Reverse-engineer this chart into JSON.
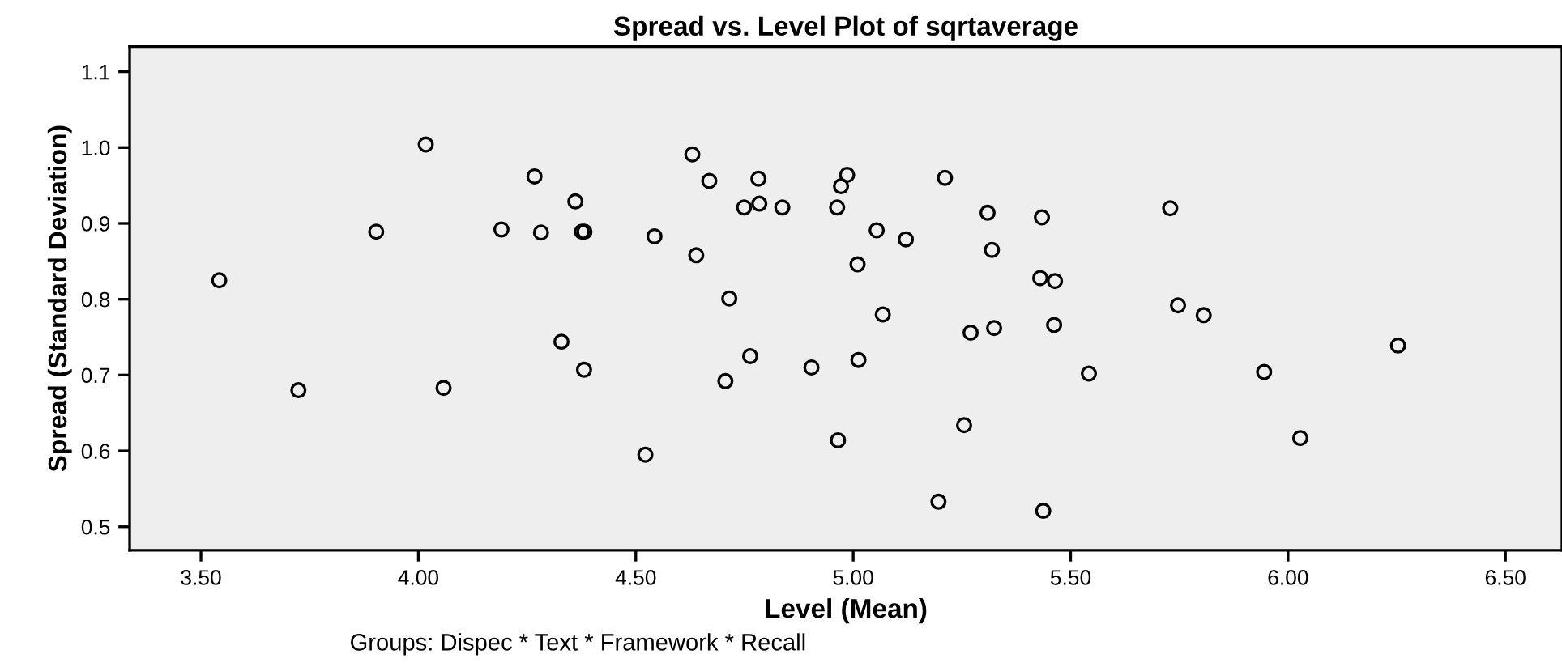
{
  "chart_data": {
    "type": "scatter",
    "title": "Spread vs. Level Plot of sqrtaverage",
    "xlabel": "Level (Mean)",
    "ylabel": "Spread (Standard Deviation)",
    "annotations": [
      "Groups: Dispec * Text * Framework * Recall"
    ],
    "x": [
      3.542,
      3.724,
      3.903,
      4.017,
      4.058,
      4.191,
      4.267,
      4.282,
      4.329,
      4.361,
      4.376,
      4.382,
      4.381,
      4.522,
      4.543,
      4.63,
      4.639,
      4.669,
      4.715,
      4.706,
      4.749,
      4.763,
      4.782,
      4.784,
      4.837,
      4.904,
      4.963,
      4.965,
      4.972,
      4.986,
      5.01,
      5.012,
      5.054,
      5.068,
      5.121,
      5.196,
      5.211,
      5.255,
      5.27,
      5.309,
      5.319,
      5.324,
      5.43,
      5.434,
      5.437,
      5.464,
      5.462,
      5.542,
      5.729,
      5.747,
      5.806,
      5.945,
      6.028,
      6.253
    ],
    "series": [
      {
        "color": "#000000",
        "values": [
          0.825,
          0.68,
          0.889,
          1.004,
          0.683,
          0.892,
          0.962,
          0.888,
          0.744,
          0.929,
          0.889,
          0.889,
          0.707,
          0.595,
          0.883,
          0.991,
          0.858,
          0.956,
          0.801,
          0.692,
          0.921,
          0.725,
          0.959,
          0.926,
          0.921,
          0.71,
          0.921,
          0.614,
          0.949,
          0.964,
          0.846,
          0.72,
          0.891,
          0.78,
          0.879,
          0.533,
          0.96,
          0.634,
          0.756,
          0.914,
          0.865,
          0.762,
          0.828,
          0.908,
          0.521,
          0.824,
          0.766,
          0.702,
          0.92,
          0.792,
          0.779,
          0.704,
          0.617,
          0.739
        ]
      }
    ],
    "xlim": [
      3.336,
      6.63
    ],
    "ylim": [
      0.469,
      1.133
    ],
    "xticks": [
      {
        "value": 3.5,
        "label": "3.50"
      },
      {
        "value": 4.0,
        "label": "4.00"
      },
      {
        "value": 4.5,
        "label": "4.50"
      },
      {
        "value": 5.0,
        "label": "5.00"
      },
      {
        "value": 5.5,
        "label": "5.50"
      },
      {
        "value": 6.0,
        "label": "6.00"
      },
      {
        "value": 6.5,
        "label": "6.50"
      }
    ],
    "yticks": [
      0.5,
      0.6,
      0.7,
      0.8,
      0.9,
      {
        "value": 1.0,
        "label": "1.0"
      },
      1.1
    ],
    "marker": "circle",
    "grid": false,
    "legend": false
  }
}
